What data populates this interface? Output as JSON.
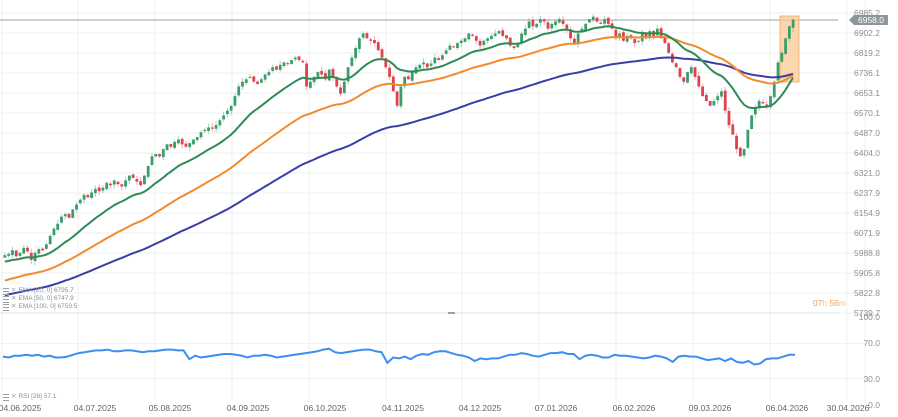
{
  "chart_data": [
    {
      "type": "candlestick",
      "title": "",
      "xlabel": "",
      "ylabel": "",
      "ylim": [
        5739.7,
        6985.2
      ],
      "y_ticks": [
        "6985.2",
        "6902.2",
        "6819.2",
        "6736.1",
        "6653.1",
        "6570.1",
        "6487.0",
        "6404.0",
        "6321.0",
        "6237.9",
        "6154.9",
        "6071.9",
        "5988.8",
        "5905.8",
        "5822.8",
        "5739.7"
      ],
      "x_ticks": [
        "04.06.2025",
        "04.07.2025",
        "05.08.2025",
        "04.09.2025",
        "06.10.2025",
        "04.11.2025",
        "04.12.2025",
        "07.01.2026",
        "06.02.2026",
        "09.03.2026",
        "06.04.2026",
        "30.04.2026"
      ],
      "last_price": "6958.0",
      "grid": true,
      "closes": [
        5980,
        5985,
        6000,
        5975,
        5990,
        6010,
        5995,
        5960,
        5990,
        6005,
        6000,
        6025,
        6060,
        6090,
        6110,
        6140,
        6150,
        6135,
        6170,
        6190,
        6210,
        6230,
        6220,
        6240,
        6255,
        6245,
        6260,
        6280,
        6270,
        6290,
        6275,
        6265,
        6290,
        6310,
        6300,
        6285,
        6270,
        6310,
        6350,
        6390,
        6400,
        6390,
        6420,
        6440,
        6430,
        6450,
        6460,
        6440,
        6430,
        6445,
        6460,
        6470,
        6490,
        6500,
        6510,
        6505,
        6520,
        6540,
        6560,
        6580,
        6600,
        6640,
        6680,
        6700,
        6710,
        6720,
        6700,
        6690,
        6710,
        6730,
        6740,
        6760,
        6750,
        6770,
        6780,
        6775,
        6790,
        6800,
        6790,
        6780,
        6680,
        6700,
        6720,
        6740,
        6730,
        6710,
        6750,
        6720,
        6680,
        6650,
        6700,
        6760,
        6800,
        6840,
        6880,
        6900,
        6880,
        6870,
        6860,
        6830,
        6800,
        6760,
        6720,
        6660,
        6600,
        6680,
        6720,
        6710,
        6740,
        6760,
        6770,
        6780,
        6760,
        6775,
        6800,
        6790,
        6810,
        6830,
        6850,
        6845,
        6860,
        6870,
        6880,
        6900,
        6890,
        6870,
        6850,
        6870,
        6880,
        6890,
        6900,
        6910,
        6890,
        6880,
        6850,
        6840,
        6860,
        6900,
        6920,
        6950,
        6930,
        6940,
        6960,
        6950,
        6920,
        6940,
        6950,
        6960,
        6940,
        6920,
        6880,
        6860,
        6900,
        6920,
        6940,
        6960,
        6970,
        6950,
        6940,
        6960,
        6940,
        6920,
        6880,
        6900,
        6870,
        6890,
        6880,
        6860,
        6870,
        6900,
        6880,
        6910,
        6890,
        6920,
        6880,
        6860,
        6820,
        6780,
        6760,
        6720,
        6700,
        6740,
        6760,
        6720,
        6680,
        6640,
        6620,
        6600,
        6620,
        6640,
        6660,
        6580,
        6520,
        6480,
        6420,
        6390,
        6420,
        6500,
        6560,
        6590,
        6620,
        6610,
        6600,
        6640,
        6700,
        6780,
        6820,
        6880,
        6930,
        6958
      ],
      "series": [
        {
          "name": "EMA [20, 0]",
          "value": "6795.7",
          "color": "#2e8b57"
        },
        {
          "name": "EMA [50, 0]",
          "value": "6747.9",
          "color": "#f28a2e"
        },
        {
          "name": "EMA [100, 0]",
          "value": "6759.5",
          "color": "#3a3fa8"
        }
      ],
      "highlight_box": {
        "color": "#f7c58f",
        "range_price": [
          6736.1,
          6985.2
        ]
      }
    },
    {
      "type": "line",
      "title": "RSI [28]",
      "value": "57.1",
      "ylim": [
        0,
        100
      ],
      "y_ticks": [
        "100.0",
        "70.0",
        "30.0",
        "0.0"
      ],
      "color": "#3b8fef",
      "values": [
        55,
        54,
        56,
        56,
        57,
        56,
        57,
        55,
        56,
        54,
        54,
        55,
        57,
        59,
        60,
        61,
        62,
        62,
        63,
        61,
        61,
        62,
        62,
        61,
        60,
        61,
        61,
        62,
        63,
        63,
        62,
        62,
        52,
        56,
        54,
        55,
        56,
        57,
        58,
        58,
        57,
        56,
        54,
        56,
        56,
        57,
        56,
        54,
        55,
        56,
        57,
        58,
        59,
        60,
        61,
        63,
        64,
        60,
        59,
        60,
        61,
        62,
        63,
        63,
        61,
        60,
        48,
        54,
        53,
        55,
        52,
        56,
        58,
        57,
        60,
        61,
        61,
        59,
        57,
        56,
        54,
        50,
        53,
        52,
        53,
        53,
        55,
        57,
        57,
        59,
        58,
        56,
        55,
        57,
        59,
        59,
        60,
        58,
        58,
        52,
        56,
        57,
        56,
        54,
        54,
        57,
        56,
        56,
        55,
        54,
        53,
        54,
        56,
        55,
        53,
        49,
        55,
        56,
        55,
        55,
        53,
        51,
        52,
        53,
        50,
        53,
        49,
        48,
        50,
        46,
        47,
        52,
        53,
        53,
        55,
        57,
        57
      ]
    }
  ],
  "legend": {
    "ema20": "EMA [20, 0] 6795.7",
    "ema50": "EMA [50, 0] 6747.9",
    "ema100": "EMA [100, 0] 6759.5",
    "rsi": "RSI [28] 57.1"
  },
  "price_tag": "6958.0",
  "countdown": {
    "hours": "07",
    "h": "h",
    "minutes": "56",
    "m": "m"
  },
  "colors": {
    "up": "#3a9e6a",
    "down": "#e0414d",
    "ema20": "#2e8b57",
    "ema50": "#f28a2e",
    "ema100": "#3a3fa8",
    "rsi": "#3b8fef",
    "grid": "#eef0f2",
    "highlight": "#f7c58f"
  }
}
